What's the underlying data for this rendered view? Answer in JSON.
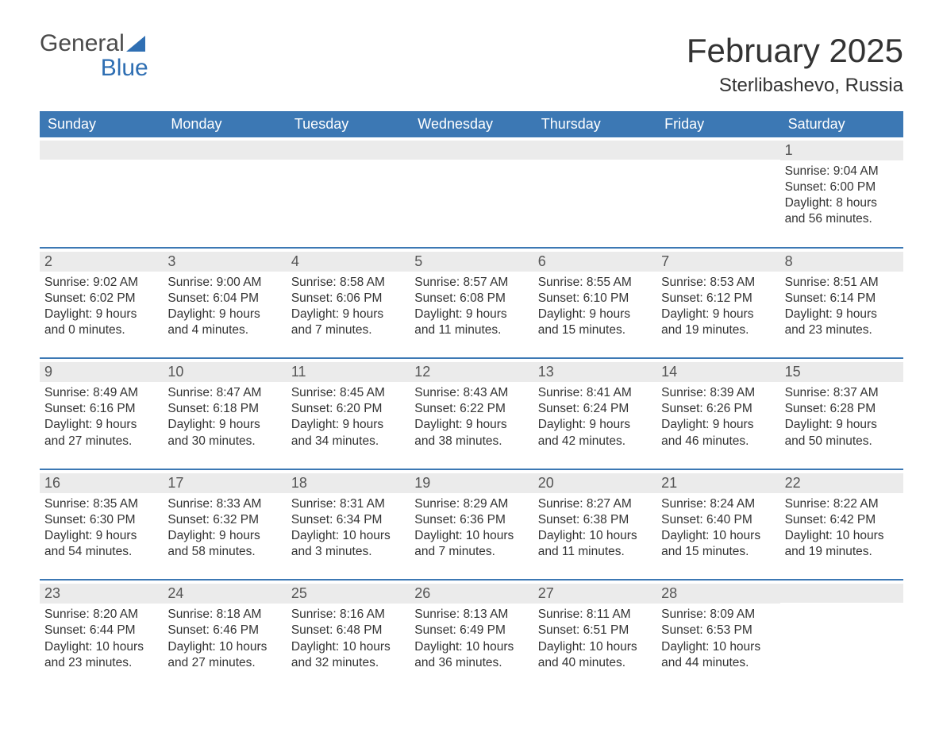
{
  "brand": {
    "name1": "General",
    "name2": "Blue"
  },
  "title": "February 2025",
  "location": "Sterlibashevo, Russia",
  "colors": {
    "header_bg": "#3c78b4",
    "header_text": "#ffffff",
    "row_rule": "#3c78b4",
    "daynum_bg": "#ebebeb",
    "text": "#333333",
    "background": "#ffffff",
    "brand_gray": "#4a4a4a",
    "brand_blue": "#2f6fb3"
  },
  "typography": {
    "title_fontsize": 42,
    "location_fontsize": 24,
    "dayheader_fontsize": 18,
    "daynum_fontsize": 18,
    "body_fontsize": 15.5,
    "font_family": "Arial"
  },
  "day_headers": [
    "Sunday",
    "Monday",
    "Tuesday",
    "Wednesday",
    "Thursday",
    "Friday",
    "Saturday"
  ],
  "weeks": [
    [
      null,
      null,
      null,
      null,
      null,
      null,
      {
        "n": "1",
        "sunrise": "9:04 AM",
        "sunset": "6:00 PM",
        "dl1": "8 hours",
        "dl2": "and 56 minutes."
      }
    ],
    [
      {
        "n": "2",
        "sunrise": "9:02 AM",
        "sunset": "6:02 PM",
        "dl1": "9 hours",
        "dl2": "and 0 minutes."
      },
      {
        "n": "3",
        "sunrise": "9:00 AM",
        "sunset": "6:04 PM",
        "dl1": "9 hours",
        "dl2": "and 4 minutes."
      },
      {
        "n": "4",
        "sunrise": "8:58 AM",
        "sunset": "6:06 PM",
        "dl1": "9 hours",
        "dl2": "and 7 minutes."
      },
      {
        "n": "5",
        "sunrise": "8:57 AM",
        "sunset": "6:08 PM",
        "dl1": "9 hours",
        "dl2": "and 11 minutes."
      },
      {
        "n": "6",
        "sunrise": "8:55 AM",
        "sunset": "6:10 PM",
        "dl1": "9 hours",
        "dl2": "and 15 minutes."
      },
      {
        "n": "7",
        "sunrise": "8:53 AM",
        "sunset": "6:12 PM",
        "dl1": "9 hours",
        "dl2": "and 19 minutes."
      },
      {
        "n": "8",
        "sunrise": "8:51 AM",
        "sunset": "6:14 PM",
        "dl1": "9 hours",
        "dl2": "and 23 minutes."
      }
    ],
    [
      {
        "n": "9",
        "sunrise": "8:49 AM",
        "sunset": "6:16 PM",
        "dl1": "9 hours",
        "dl2": "and 27 minutes."
      },
      {
        "n": "10",
        "sunrise": "8:47 AM",
        "sunset": "6:18 PM",
        "dl1": "9 hours",
        "dl2": "and 30 minutes."
      },
      {
        "n": "11",
        "sunrise": "8:45 AM",
        "sunset": "6:20 PM",
        "dl1": "9 hours",
        "dl2": "and 34 minutes."
      },
      {
        "n": "12",
        "sunrise": "8:43 AM",
        "sunset": "6:22 PM",
        "dl1": "9 hours",
        "dl2": "and 38 minutes."
      },
      {
        "n": "13",
        "sunrise": "8:41 AM",
        "sunset": "6:24 PM",
        "dl1": "9 hours",
        "dl2": "and 42 minutes."
      },
      {
        "n": "14",
        "sunrise": "8:39 AM",
        "sunset": "6:26 PM",
        "dl1": "9 hours",
        "dl2": "and 46 minutes."
      },
      {
        "n": "15",
        "sunrise": "8:37 AM",
        "sunset": "6:28 PM",
        "dl1": "9 hours",
        "dl2": "and 50 minutes."
      }
    ],
    [
      {
        "n": "16",
        "sunrise": "8:35 AM",
        "sunset": "6:30 PM",
        "dl1": "9 hours",
        "dl2": "and 54 minutes."
      },
      {
        "n": "17",
        "sunrise": "8:33 AM",
        "sunset": "6:32 PM",
        "dl1": "9 hours",
        "dl2": "and 58 minutes."
      },
      {
        "n": "18",
        "sunrise": "8:31 AM",
        "sunset": "6:34 PM",
        "dl1": "10 hours",
        "dl2": "and 3 minutes."
      },
      {
        "n": "19",
        "sunrise": "8:29 AM",
        "sunset": "6:36 PM",
        "dl1": "10 hours",
        "dl2": "and 7 minutes."
      },
      {
        "n": "20",
        "sunrise": "8:27 AM",
        "sunset": "6:38 PM",
        "dl1": "10 hours",
        "dl2": "and 11 minutes."
      },
      {
        "n": "21",
        "sunrise": "8:24 AM",
        "sunset": "6:40 PM",
        "dl1": "10 hours",
        "dl2": "and 15 minutes."
      },
      {
        "n": "22",
        "sunrise": "8:22 AM",
        "sunset": "6:42 PM",
        "dl1": "10 hours",
        "dl2": "and 19 minutes."
      }
    ],
    [
      {
        "n": "23",
        "sunrise": "8:20 AM",
        "sunset": "6:44 PM",
        "dl1": "10 hours",
        "dl2": "and 23 minutes."
      },
      {
        "n": "24",
        "sunrise": "8:18 AM",
        "sunset": "6:46 PM",
        "dl1": "10 hours",
        "dl2": "and 27 minutes."
      },
      {
        "n": "25",
        "sunrise": "8:16 AM",
        "sunset": "6:48 PM",
        "dl1": "10 hours",
        "dl2": "and 32 minutes."
      },
      {
        "n": "26",
        "sunrise": "8:13 AM",
        "sunset": "6:49 PM",
        "dl1": "10 hours",
        "dl2": "and 36 minutes."
      },
      {
        "n": "27",
        "sunrise": "8:11 AM",
        "sunset": "6:51 PM",
        "dl1": "10 hours",
        "dl2": "and 40 minutes."
      },
      {
        "n": "28",
        "sunrise": "8:09 AM",
        "sunset": "6:53 PM",
        "dl1": "10 hours",
        "dl2": "and 44 minutes."
      },
      null
    ]
  ],
  "labels": {
    "sunrise": "Sunrise: ",
    "sunset": "Sunset: ",
    "daylight": "Daylight: "
  }
}
